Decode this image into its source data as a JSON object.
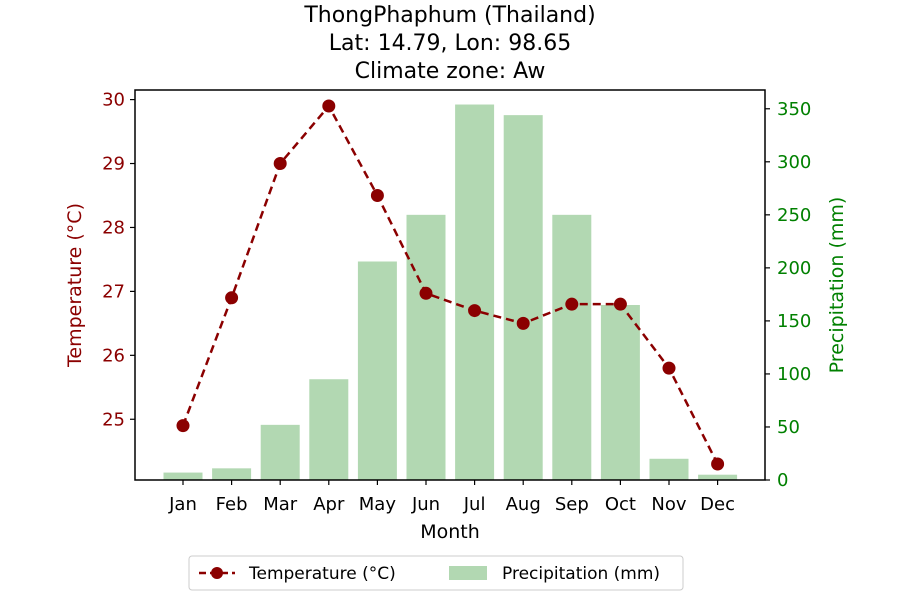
{
  "chart_data": {
    "type": "bar+line",
    "title_lines": [
      "ThongPhaphum (Thailand)",
      "Lat: 14.79, Lon: 98.65",
      "Climate zone: Aw"
    ],
    "xlabel": "Month",
    "ylabel_left": "Temperature (°C)",
    "ylabel_right": "Precipitation (mm)",
    "categories": [
      "Jan",
      "Feb",
      "Mar",
      "Apr",
      "May",
      "Jun",
      "Jul",
      "Aug",
      "Sep",
      "Oct",
      "Nov",
      "Dec"
    ],
    "temperature": {
      "name": "Temperature (°C)",
      "values": [
        24.9,
        26.9,
        29.0,
        29.9,
        28.5,
        26.97,
        26.7,
        26.5,
        26.8,
        26.8,
        25.8,
        24.3
      ]
    },
    "precipitation": {
      "name": "Precipitation (mm)",
      "values": [
        7,
        11,
        52,
        95,
        206,
        250,
        354,
        344,
        250,
        165,
        20,
        5
      ]
    },
    "ylim_left": [
      24.05,
      30.15
    ],
    "ylim_right": [
      0,
      367.7
    ],
    "yticks_left": [
      25,
      26,
      27,
      28,
      29,
      30
    ],
    "yticks_right": [
      0,
      50,
      100,
      150,
      200,
      250,
      300,
      350
    ],
    "legend_placement": "bottom-center",
    "colors": {
      "temperature": "#8b0000",
      "precipitation": "#b2d8b2",
      "right_axis": "#008000"
    }
  }
}
